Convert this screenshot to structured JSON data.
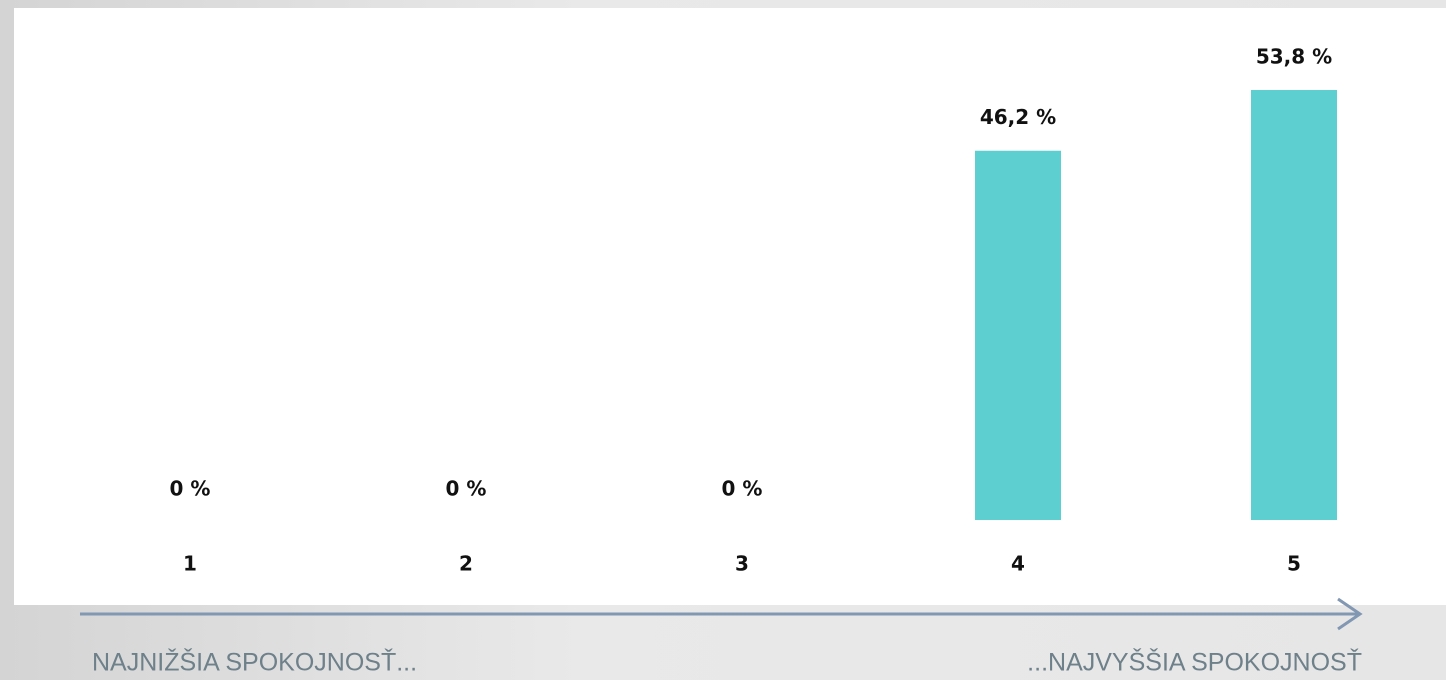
{
  "chart_data": {
    "type": "bar",
    "categories": [
      "1",
      "2",
      "3",
      "4",
      "5"
    ],
    "values": [
      0,
      0,
      0,
      46.2,
      53.8
    ],
    "value_labels": [
      "0 %",
      "0 %",
      "0 %",
      "46,2 %",
      "53,8 %"
    ],
    "color": "#5ecfd1",
    "annotations": [
      "NAJNIŽŠIA SPOKOJNOSŤ...",
      "...NAJVYŠŠIA SPOKOJNOSŤ"
    ]
  }
}
